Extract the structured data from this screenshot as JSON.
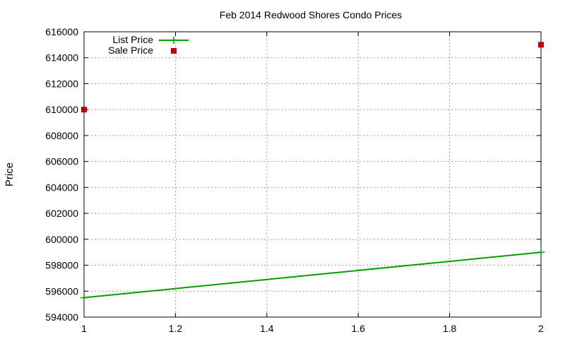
{
  "chart_data": {
    "type": "line",
    "title": "Feb 2014 Redwood Shores Condo Prices",
    "xlabel": "",
    "ylabel": "Price",
    "xlim": [
      1,
      2
    ],
    "ylim": [
      594000,
      616000
    ],
    "x_ticks": [
      1,
      1.2,
      1.4,
      1.6,
      1.8,
      2
    ],
    "x_tick_labels": [
      "1",
      "1.2",
      "1.4",
      "1.6",
      "1.8",
      "2"
    ],
    "y_ticks": [
      594000,
      596000,
      598000,
      600000,
      602000,
      604000,
      606000,
      608000,
      610000,
      612000,
      614000,
      616000
    ],
    "y_tick_labels": [
      "594000",
      "596000",
      "598000",
      "600000",
      "602000",
      "604000",
      "606000",
      "608000",
      "610000",
      "612000",
      "614000",
      "616000"
    ],
    "grid": true,
    "legend_position": "top-left",
    "series": [
      {
        "name": "List Price",
        "style": "lines+points",
        "color": "#00a000",
        "x": [
          1,
          2
        ],
        "y": [
          595500,
          599000
        ]
      },
      {
        "name": "Sale Price",
        "style": "points",
        "marker": "square",
        "color": "#c00000",
        "x": [
          1,
          2
        ],
        "y": [
          610000,
          615000
        ]
      }
    ]
  }
}
